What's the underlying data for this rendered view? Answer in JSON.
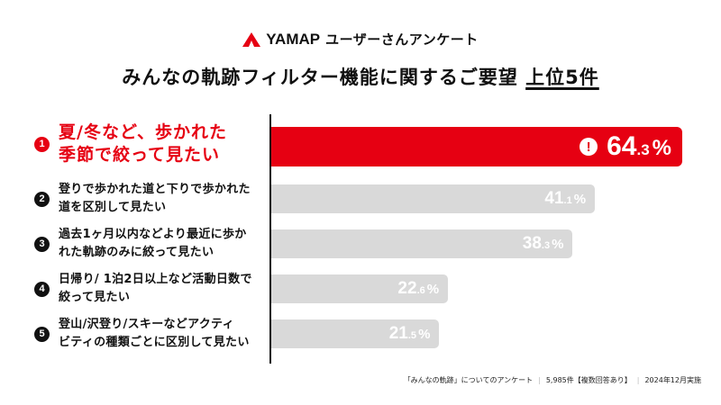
{
  "header": {
    "brand_name": "YAMAP",
    "brand_suffix": "ユーザーさんアンケート",
    "title_main": "みんなの軌跡フィルター機能に関するご要望",
    "title_highlight": "上位5件",
    "brand_color": "#e60012"
  },
  "chart_data": {
    "type": "bar",
    "orientation": "horizontal",
    "title": "みんなの軌跡フィルター機能に関するご要望 上位5件",
    "xlabel": "",
    "ylabel": "",
    "unit": "%",
    "grid": false,
    "categories": [
      "夏/冬など、歩かれた\n季節で絞って見たい",
      "登りで歩かれた道と下りで歩かれた\n道を区別して見たい",
      "過去1ヶ月以内などより最近に歩か\nれた軌跡のみに絞って見たい",
      "日帰り/ 1泊2日以上など活動日数で\n絞って見たい",
      "登山/沢登り/スキーなどアクティ\nビティの種類ごとに区別して見たい"
    ],
    "ranks": [
      "1",
      "2",
      "3",
      "4",
      "5"
    ],
    "values": [
      64.3,
      41.1,
      38.3,
      22.6,
      21.5
    ],
    "value_labels": [
      {
        "int": "64",
        "dec": ".3",
        "pct": "%"
      },
      {
        "int": "41",
        "dec": ".1",
        "pct": "%"
      },
      {
        "int": "38",
        "dec": ".3",
        "pct": "%"
      },
      {
        "int": "22",
        "dec": ".6",
        "pct": "%"
      },
      {
        "int": "21",
        "dec": ".5",
        "pct": "%"
      }
    ],
    "highlight_index": 0,
    "highlight_icon": "exclamation-circle-icon",
    "colors": {
      "highlight": "#e60012",
      "default": "#d9d9d9",
      "value_text": "#ffffff"
    }
  },
  "footer": {
    "survey_name": "「みんなの軌跡」についてのアンケート",
    "respondents": "5,985件【複数回答あり】",
    "date": "2024年12月実施"
  }
}
